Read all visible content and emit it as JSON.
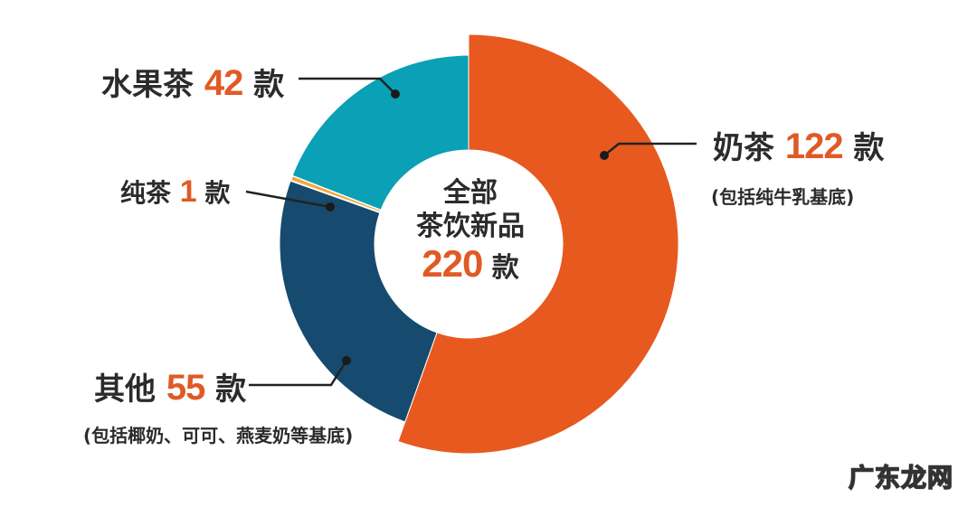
{
  "chart_data": {
    "type": "pie",
    "variant": "donut",
    "title": "全部茶饮新品 220款",
    "total": 220,
    "unit": "款",
    "categories": [
      "奶茶",
      "其他",
      "纯茶",
      "水果茶"
    ],
    "values": [
      122,
      55,
      1,
      42
    ],
    "colors": [
      "#e8591f",
      "#164a6e",
      "#f2a93b",
      "#0aa0b5"
    ],
    "notes": [
      "包括纯牛乳基底",
      "包括椰奶、可可、燕麦奶等基底",
      "",
      ""
    ],
    "start_angle_deg": 0,
    "direction": "clockwise",
    "exploded": [
      "奶茶"
    ]
  },
  "center": {
    "line1": "全部",
    "line2": "茶饮新品",
    "total": "220",
    "unit": "款"
  },
  "labels": {
    "milk_tea": {
      "name": "奶茶",
      "count": "122",
      "unit": "款",
      "note": "(包括纯牛乳基底)"
    },
    "fruit_tea": {
      "name": "水果茶",
      "count": "42",
      "unit": "款"
    },
    "pure_tea": {
      "name": "纯茶",
      "count": "1",
      "unit": "款"
    },
    "other": {
      "name": "其他",
      "count": "55",
      "unit": "款",
      "note": "(包括椰奶、可可、燕麦奶等基底)"
    }
  },
  "watermark": "广东龙网"
}
